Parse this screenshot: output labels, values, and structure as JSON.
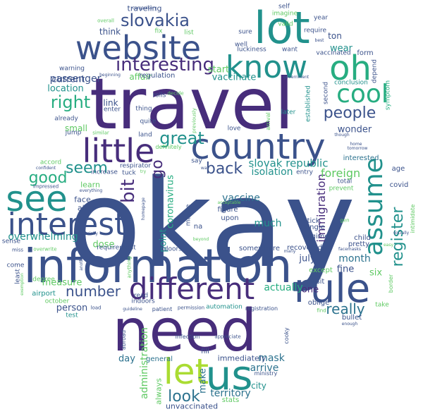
{
  "palette": {
    "purple": "#472d7b",
    "indigo": "#3b528b",
    "blue": "#2c728e",
    "teal": "#21918c",
    "green": "#27ad81",
    "lime": "#5ec962",
    "yellow": "#aadc32"
  },
  "words": [
    {
      "text": "okay",
      "color": "indigo"
    },
    {
      "text": "travel",
      "color": "purple"
    },
    {
      "text": "information",
      "color": "indigo"
    },
    {
      "text": "need",
      "color": "purple"
    },
    {
      "text": "website",
      "color": "indigo"
    },
    {
      "text": "lot",
      "color": "teal"
    },
    {
      "text": "country",
      "color": "indigo"
    },
    {
      "text": "know",
      "color": "teal"
    },
    {
      "text": "oh",
      "color": "green"
    },
    {
      "text": "rule",
      "color": "indigo"
    },
    {
      "text": "little",
      "color": "purple"
    },
    {
      "text": "see",
      "color": "teal"
    },
    {
      "text": "interest",
      "color": "indigo"
    },
    {
      "text": "different",
      "color": "purple"
    },
    {
      "text": "us",
      "color": "teal"
    },
    {
      "text": "let",
      "color": "yellow"
    },
    {
      "text": "cool",
      "color": "green"
    },
    {
      "text": "assume",
      "color": "teal"
    },
    {
      "text": "interesting",
      "color": "purple"
    },
    {
      "text": "slovakia",
      "color": "indigo"
    },
    {
      "text": "right",
      "color": "green"
    },
    {
      "text": "people",
      "color": "indigo"
    },
    {
      "text": "great",
      "color": "teal"
    },
    {
      "text": "back",
      "color": "indigo"
    },
    {
      "text": "good",
      "color": "green"
    },
    {
      "text": "seem",
      "color": "teal"
    },
    {
      "text": "number",
      "color": "indigo"
    },
    {
      "text": "really",
      "color": "blue"
    },
    {
      "text": "look",
      "color": "blue"
    },
    {
      "text": "register",
      "color": "teal"
    },
    {
      "text": "bit",
      "color": "purple"
    },
    {
      "text": "go",
      "color": "purple"
    },
    {
      "text": "slovak republic",
      "color": "teal"
    },
    {
      "text": "overwhelming",
      "color": "teal"
    },
    {
      "text": "administration",
      "color": "lime"
    },
    {
      "text": "coronavirus",
      "color": "green"
    },
    {
      "text": "immigration",
      "color": "purple"
    },
    {
      "text": "foreign",
      "color": "lime"
    },
    {
      "text": "isolation",
      "color": "teal"
    },
    {
      "text": "vaccine",
      "color": "blue"
    },
    {
      "text": "territory",
      "color": "blue"
    },
    {
      "text": "arrive",
      "color": "blue"
    },
    {
      "text": "mask",
      "color": "blue"
    },
    {
      "text": "much",
      "color": "teal"
    },
    {
      "text": "month",
      "color": "blue"
    },
    {
      "text": "actually",
      "color": "green"
    },
    {
      "text": "passenger",
      "color": "indigo"
    },
    {
      "text": "current",
      "color": "indigo"
    },
    {
      "text": "location",
      "color": "teal"
    },
    {
      "text": "vaccinate",
      "color": "teal"
    },
    {
      "text": "start",
      "color": "lime"
    },
    {
      "text": "wear",
      "color": "teal"
    },
    {
      "text": "wonder",
      "color": "indigo"
    },
    {
      "text": "measure",
      "color": "lime"
    },
    {
      "text": "person",
      "color": "indigo"
    },
    {
      "text": "day",
      "color": "blue"
    },
    {
      "text": "make",
      "color": "blue"
    },
    {
      "text": "city",
      "color": "teal"
    },
    {
      "text": "fine",
      "color": "indigo"
    },
    {
      "text": "six",
      "color": "lime"
    },
    {
      "text": "july",
      "color": "indigo"
    },
    {
      "text": "one",
      "color": "purple"
    },
    {
      "text": "point",
      "color": "teal"
    },
    {
      "text": "dose",
      "color": "lime"
    },
    {
      "text": "think",
      "color": "indigo"
    },
    {
      "text": "affair",
      "color": "lime"
    },
    {
      "text": "link",
      "color": "indigo"
    },
    {
      "text": "small",
      "color": "lime"
    },
    {
      "text": "learn",
      "color": "lime"
    },
    {
      "text": "face",
      "color": "indigo"
    },
    {
      "text": "air",
      "color": "indigo"
    },
    {
      "text": "ton",
      "color": "indigo"
    },
    {
      "text": "immediately",
      "color": "indigo"
    },
    {
      "text": "always",
      "color": "lime"
    },
    {
      "text": "unvaccinated",
      "color": "indigo"
    },
    {
      "text": "stats",
      "color": "lime"
    },
    {
      "text": "general",
      "color": "blue"
    },
    {
      "text": "fill",
      "color": "indigo"
    },
    {
      "text": "figure",
      "color": "indigo"
    },
    {
      "text": "upon",
      "color": "indigo"
    },
    {
      "text": "na",
      "color": "indigo"
    },
    {
      "text": "say",
      "color": "indigo"
    },
    {
      "text": "maybe",
      "color": "indigo"
    },
    {
      "text": "traveling",
      "color": "indigo"
    },
    {
      "text": "entry",
      "color": "indigo"
    },
    {
      "text": "interested",
      "color": "blue"
    },
    {
      "text": "total",
      "color": "indigo"
    },
    {
      "text": "prevent",
      "color": "lime"
    },
    {
      "text": "age",
      "color": "indigo"
    },
    {
      "text": "covid",
      "color": "indigo"
    },
    {
      "text": "stick",
      "color": "indigo"
    },
    {
      "text": "single",
      "color": "indigo"
    },
    {
      "text": "regime",
      "color": "indigo"
    },
    {
      "text": "child",
      "color": "indigo"
    },
    {
      "text": "pretty",
      "color": "indigo"
    },
    {
      "text": "recovered",
      "color": "indigo"
    },
    {
      "text": "somewhere",
      "color": "indigo"
    },
    {
      "text": "except",
      "color": "lime"
    },
    {
      "text": "visit",
      "color": "indigo"
    },
    {
      "text": "oblige",
      "color": "indigo"
    },
    {
      "text": "take",
      "color": "lime"
    },
    {
      "text": "bullet",
      "color": "indigo"
    },
    {
      "text": "form",
      "color": "indigo"
    },
    {
      "text": "vaccinated",
      "color": "indigo"
    },
    {
      "text": "conclusion",
      "color": "teal"
    },
    {
      "text": "regulation",
      "color": "indigo"
    },
    {
      "text": "established",
      "color": "teal"
    },
    {
      "text": "second",
      "color": "indigo"
    },
    {
      "text": "later",
      "color": "teal"
    },
    {
      "text": "love",
      "color": "indigo"
    },
    {
      "text": "sure",
      "color": "indigo"
    },
    {
      "text": "well",
      "color": "indigo"
    },
    {
      "text": "luckiness",
      "color": "indigo"
    },
    {
      "text": "want",
      "color": "indigo"
    },
    {
      "text": "require",
      "color": "indigo"
    },
    {
      "text": "valid",
      "color": "lime"
    },
    {
      "text": "self",
      "color": "indigo"
    },
    {
      "text": "imagine",
      "color": "lime"
    },
    {
      "text": "year",
      "color": "indigo"
    },
    {
      "text": "list",
      "color": "lime"
    },
    {
      "text": "fix",
      "color": "lime"
    },
    {
      "text": "compulsory",
      "color": "indigo"
    },
    {
      "text": "overall",
      "color": "lime"
    },
    {
      "text": "warning",
      "color": "indigo"
    },
    {
      "text": "beginning",
      "color": "indigo"
    },
    {
      "text": "rolls",
      "color": "indigo"
    },
    {
      "text": "decide",
      "color": "lime"
    },
    {
      "text": "thing",
      "color": "indigo"
    },
    {
      "text": "quite",
      "color": "indigo"
    },
    {
      "text": "enter",
      "color": "indigo"
    },
    {
      "text": "already",
      "color": "indigo"
    },
    {
      "text": "jump",
      "color": "indigo"
    },
    {
      "text": "similar",
      "color": "lime"
    },
    {
      "text": "land",
      "color": "indigo"
    },
    {
      "text": "definitely",
      "color": "lime"
    },
    {
      "text": "respirator",
      "color": "indigo"
    },
    {
      "text": "tuck",
      "color": "indigo"
    },
    {
      "text": "increase",
      "color": "indigo"
    },
    {
      "text": "everything",
      "color": "indigo"
    },
    {
      "text": "homepage",
      "color": "indigo"
    },
    {
      "text": "accord",
      "color": "lime"
    },
    {
      "text": "confident",
      "color": "indigo"
    },
    {
      "text": "impressed",
      "color": "indigo"
    },
    {
      "text": "especially",
      "color": "indigo"
    },
    {
      "text": "overwrite",
      "color": "lime"
    },
    {
      "text": "sense",
      "color": "indigo"
    },
    {
      "text": "miss",
      "color": "indigo"
    },
    {
      "text": "come",
      "color": "indigo"
    },
    {
      "text": "least",
      "color": "indigo"
    },
    {
      "text": "exemption",
      "color": "lime"
    },
    {
      "text": "degree",
      "color": "lime"
    },
    {
      "text": "airport",
      "color": "teal"
    },
    {
      "text": "october",
      "color": "lime"
    },
    {
      "text": "test",
      "color": "teal"
    },
    {
      "text": "another",
      "color": "indigo"
    },
    {
      "text": "anything",
      "color": "lime"
    },
    {
      "text": "load",
      "color": "indigo"
    },
    {
      "text": "requirement",
      "color": "indigo"
    },
    {
      "text": "outdoors",
      "color": "indigo"
    },
    {
      "text": "indoors",
      "color": "indigo"
    },
    {
      "text": "read",
      "color": "indigo"
    },
    {
      "text": "guideline",
      "color": "indigo"
    },
    {
      "text": "patient",
      "color": "indigo"
    },
    {
      "text": "permission",
      "color": "indigo"
    },
    {
      "text": "automation",
      "color": "teal"
    },
    {
      "text": "registration",
      "color": "indigo"
    },
    {
      "text": "abroad",
      "color": "indigo"
    },
    {
      "text": "infection",
      "color": "indigo"
    },
    {
      "text": "appreciate",
      "color": "indigo"
    },
    {
      "text": "cooky",
      "color": "indigo"
    },
    {
      "text": "ministry",
      "color": "indigo"
    },
    {
      "text": "many",
      "color": "indigo"
    },
    {
      "text": "beyond",
      "color": "lime"
    },
    {
      "text": "acceptable",
      "color": "lime"
    },
    {
      "text": "way",
      "color": "indigo"
    },
    {
      "text": "gen",
      "color": "lime"
    },
    {
      "text": "facemasks",
      "color": "indigo"
    },
    {
      "text": "easy",
      "color": "lime"
    },
    {
      "text": "intimidate",
      "color": "lime"
    },
    {
      "text": "socially",
      "color": "indigo"
    },
    {
      "text": "border",
      "color": "lime"
    },
    {
      "text": "find",
      "color": "lime"
    },
    {
      "text": "enough",
      "color": "indigo"
    },
    {
      "text": "home",
      "color": "indigo"
    },
    {
      "text": "tomorrow",
      "color": "indigo"
    },
    {
      "text": "though",
      "color": "indigo"
    },
    {
      "text": "symptom",
      "color": "green"
    },
    {
      "text": "depend",
      "color": "indigo"
    },
    {
      "text": "government",
      "color": "indigo"
    },
    {
      "text": "previously",
      "color": "lime"
    },
    {
      "text": "arrival",
      "color": "lime"
    },
    {
      "text": "best",
      "color": "indigo"
    },
    {
      "text": "try",
      "color": "lime"
    }
  ]
}
